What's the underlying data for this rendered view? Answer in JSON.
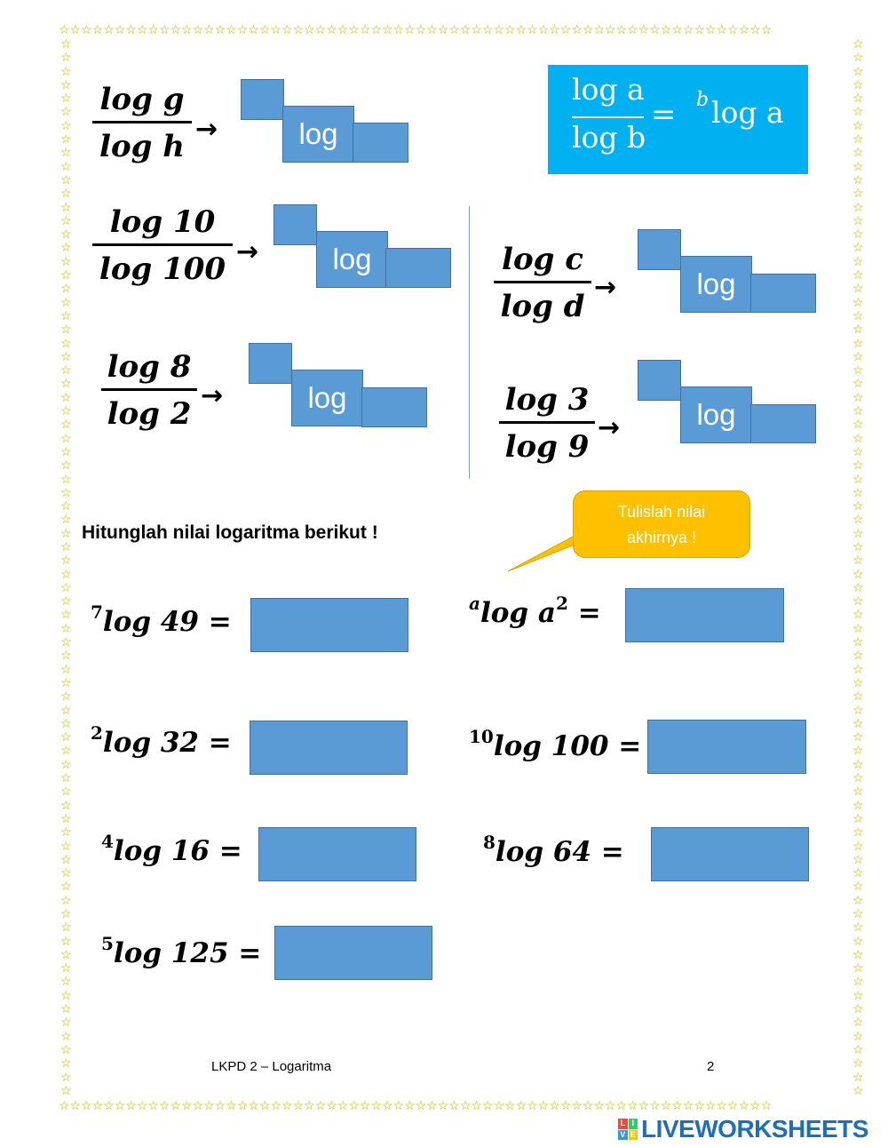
{
  "border": {
    "star_glyph": "☆",
    "color": "#f2e74b"
  },
  "fractions": [
    {
      "numerator": "log g",
      "denominator": "log h"
    },
    {
      "numerator": "log 10",
      "denominator": "log 100"
    },
    {
      "numerator": "log 8",
      "denominator": "log 2"
    },
    {
      "numerator": "log c",
      "denominator": "log d"
    },
    {
      "numerator": "log 3",
      "denominator": "log 9"
    }
  ],
  "arrow": "→",
  "box_label": "log",
  "formula": {
    "numerator": "log a",
    "denominator": "log b",
    "equals": "=",
    "base": "b",
    "rhs": "log a",
    "background": "#00b0f0"
  },
  "instruction": "Hitunglah nilai logaritma berikut !",
  "callout": {
    "line1": "Tulislah nilai",
    "line2": "akhirnya !",
    "color": "#ffc000"
  },
  "problems": [
    {
      "base": "7",
      "body": "log 49",
      "equals": "="
    },
    {
      "base": "a",
      "body": "log a",
      "exponent": "2",
      "equals": "="
    },
    {
      "base": "2",
      "body": "log 32",
      "equals": "="
    },
    {
      "base": "10",
      "body": "log 100",
      "equals": "="
    },
    {
      "base": "4",
      "body": "log 16",
      "equals": "="
    },
    {
      "base": "8",
      "body": "log 64",
      "equals": "="
    },
    {
      "base": "5",
      "body": "log 125",
      "equals": "="
    }
  ],
  "answer_box_color": "#5b9bd5",
  "footer": {
    "title": "LKPD 2 – Logaritma",
    "page": "2"
  },
  "brand": {
    "name": "LIVEWORKSHEETS",
    "logo_letters": [
      "L",
      "I",
      "V",
      "E"
    ]
  }
}
